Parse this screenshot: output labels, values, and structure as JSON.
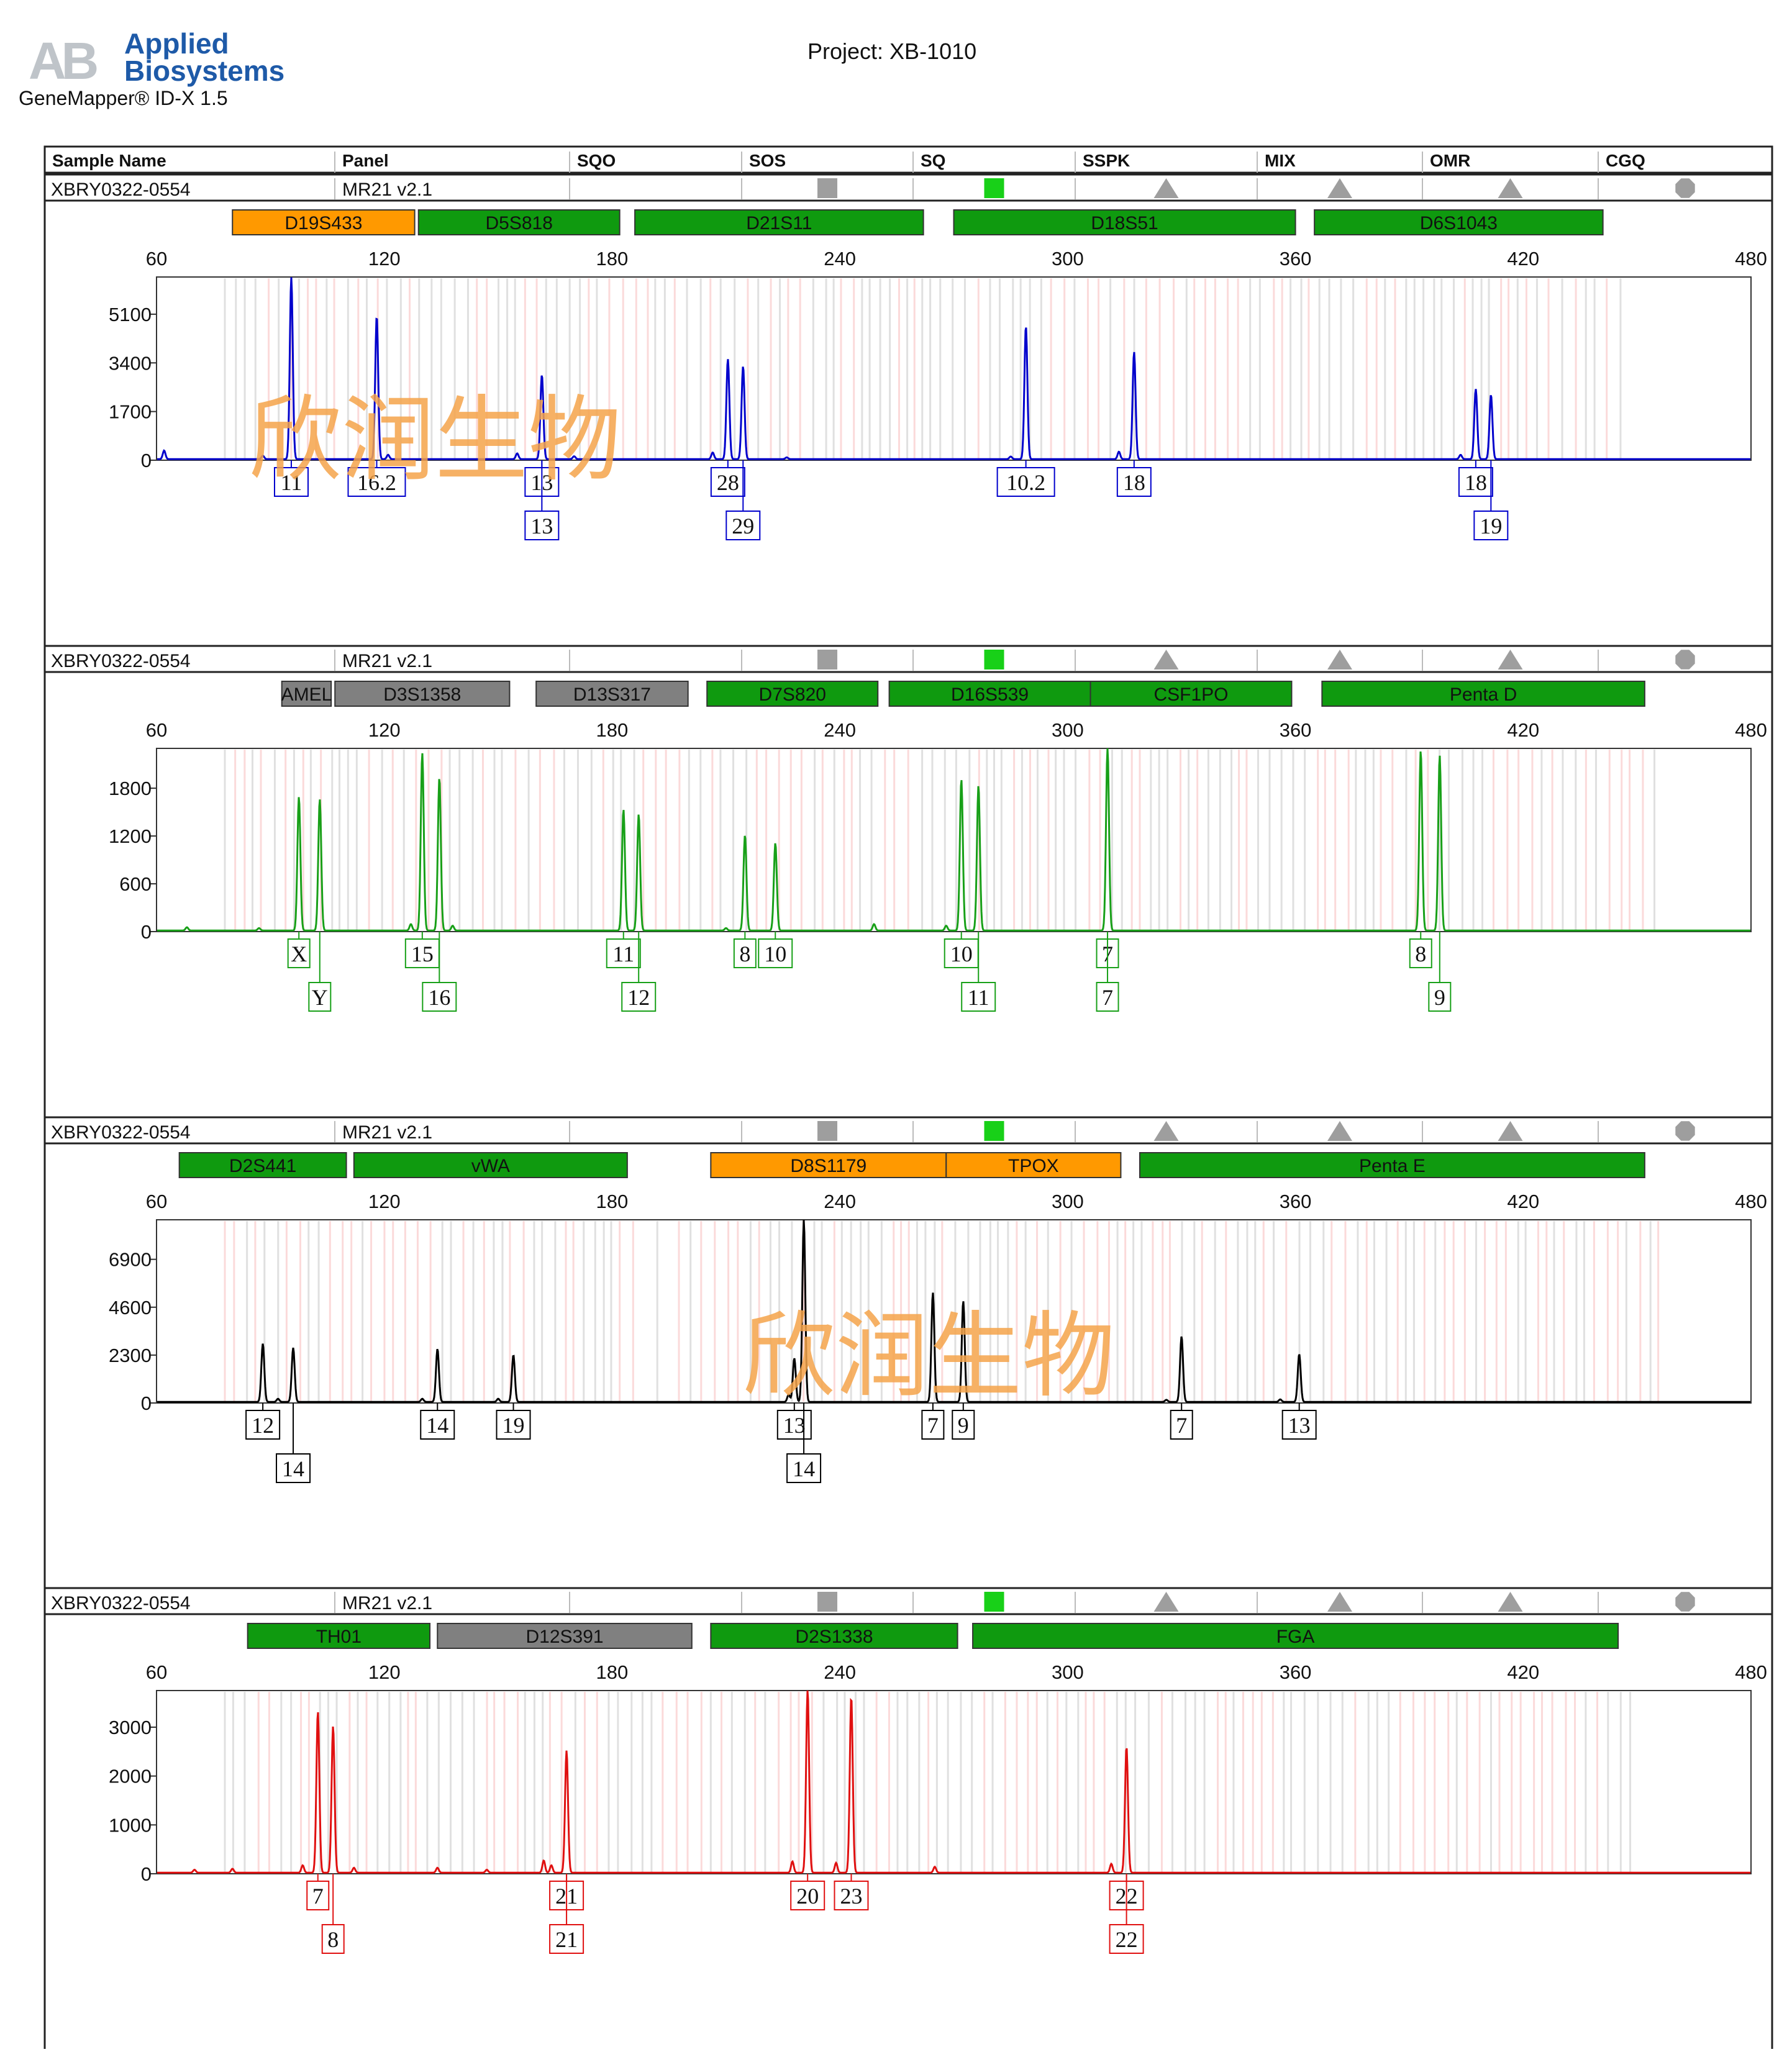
{
  "header": {
    "logo_abbr": "AB",
    "logo_line1": "Applied",
    "logo_line2": "Biosystems",
    "software": "GeneMapper® ID-X  1.5",
    "project": "Project: XB-1010"
  },
  "table_headers": [
    "Sample Name",
    "Panel",
    "SQO",
    "SOS",
    "SQ",
    "SSPK",
    "MIX",
    "OMR",
    "CGQ"
  ],
  "sample": {
    "name": "XBRY0322-0554",
    "panel": "MR21  v2.1",
    "flags": [
      {
        "col": "SOS",
        "shape": "square",
        "color": "#9e9e9e"
      },
      {
        "col": "SQ",
        "shape": "square",
        "color": "#18d018"
      },
      {
        "col": "SSPK",
        "shape": "triangle",
        "color": "#9e9e9e"
      },
      {
        "col": "MIX",
        "shape": "triangle",
        "color": "#9e9e9e"
      },
      {
        "col": "OMR",
        "shape": "triangle",
        "color": "#9e9e9e"
      },
      {
        "col": "CGQ",
        "shape": "octagon",
        "color": "#9e9e9e"
      }
    ]
  },
  "watermark": "欣润生物",
  "colors": {
    "green_bin": "#0f9a0f",
    "orange_bin": "#ff9900",
    "gray_bin": "#808080",
    "panel_border": "#222222"
  },
  "chart_data": [
    {
      "type": "line",
      "dye": "blue",
      "color": "#0000cc",
      "xlim": [
        60,
        480
      ],
      "xticks": [
        60,
        120,
        180,
        240,
        300,
        360,
        420,
        480
      ],
      "yticks": [
        0,
        1700,
        3400,
        5100
      ],
      "ylim": [
        0,
        6400
      ],
      "markers": [
        {
          "name": "D19S433",
          "start": 80,
          "end": 128,
          "color": "orange"
        },
        {
          "name": "D5S818",
          "start": 129,
          "end": 182,
          "color": "green"
        },
        {
          "name": "D21S11",
          "start": 186,
          "end": 262,
          "color": "green"
        },
        {
          "name": "D18S51",
          "start": 270,
          "end": 360,
          "color": "green"
        },
        {
          "name": "D6S1043",
          "start": 365,
          "end": 441,
          "color": "green"
        }
      ],
      "peaks": [
        {
          "x": 95.5,
          "y": 6350,
          "allele": "11",
          "row": 1
        },
        {
          "x": 118,
          "y": 5000,
          "allele": "16.2",
          "row": 1
        },
        {
          "x": 161.5,
          "y": 2950,
          "allele": "13",
          "row": 1
        },
        {
          "x": 161.5,
          "y": 2950,
          "allele": "13",
          "row": 2
        },
        {
          "x": 210.5,
          "y": 3500,
          "allele": "28",
          "row": 1
        },
        {
          "x": 214.5,
          "y": 3250,
          "allele": "29",
          "row": 2
        },
        {
          "x": 289,
          "y": 4650,
          "allele": "10.2",
          "row": 1
        },
        {
          "x": 317.5,
          "y": 3750,
          "allele": "18",
          "row": 1
        },
        {
          "x": 407.5,
          "y": 2450,
          "allele": "18",
          "row": 1
        },
        {
          "x": 411.5,
          "y": 2250,
          "allele": "19",
          "row": 2
        }
      ],
      "minor": [
        {
          "x": 62,
          "y": 300
        },
        {
          "x": 88,
          "y": 120
        },
        {
          "x": 121,
          "y": 150
        },
        {
          "x": 155,
          "y": 200
        },
        {
          "x": 170,
          "y": 100
        },
        {
          "x": 206.5,
          "y": 230
        },
        {
          "x": 226,
          "y": 60
        },
        {
          "x": 285,
          "y": 90
        },
        {
          "x": 313.5,
          "y": 260
        },
        {
          "x": 403.5,
          "y": 150
        }
      ]
    },
    {
      "type": "line",
      "dye": "green",
      "color": "#18a018",
      "xlim": [
        60,
        480
      ],
      "xticks": [
        60,
        120,
        180,
        240,
        300,
        360,
        420,
        480
      ],
      "yticks": [
        0,
        600,
        1200,
        1800
      ],
      "ylim": [
        0,
        2300
      ],
      "markers": [
        {
          "name": "AMEL",
          "start": 93,
          "end": 106,
          "color": "gray"
        },
        {
          "name": "D3S1358",
          "start": 107,
          "end": 153,
          "color": "gray"
        },
        {
          "name": "D13S317",
          "start": 160,
          "end": 200,
          "color": "gray"
        },
        {
          "name": "D7S820",
          "start": 205,
          "end": 250,
          "color": "green"
        },
        {
          "name": "D16S539",
          "start": 253,
          "end": 306,
          "color": "green"
        },
        {
          "name": "CSF1PO",
          "start": 306,
          "end": 359,
          "color": "green"
        },
        {
          "name": "Penta D",
          "start": 367,
          "end": 452,
          "color": "green"
        }
      ],
      "peaks": [
        {
          "x": 97.5,
          "y": 1680,
          "allele": "X",
          "row": 1
        },
        {
          "x": 103,
          "y": 1650,
          "allele": "Y",
          "row": 2
        },
        {
          "x": 130,
          "y": 2230,
          "allele": "15",
          "row": 1
        },
        {
          "x": 134.5,
          "y": 1920,
          "allele": "16",
          "row": 2
        },
        {
          "x": 183,
          "y": 1520,
          "allele": "11",
          "row": 1
        },
        {
          "x": 187,
          "y": 1460,
          "allele": "12",
          "row": 2
        },
        {
          "x": 215,
          "y": 1200,
          "allele": "8",
          "row": 1
        },
        {
          "x": 223,
          "y": 1100,
          "allele": "10",
          "row": 1
        },
        {
          "x": 272,
          "y": 1900,
          "allele": "10",
          "row": 1
        },
        {
          "x": 276.5,
          "y": 1820,
          "allele": "11",
          "row": 2
        },
        {
          "x": 310.5,
          "y": 2300,
          "allele": "7",
          "row": 1
        },
        {
          "x": 310.5,
          "y": 2300,
          "allele": "7",
          "row": 2
        },
        {
          "x": 393,
          "y": 2260,
          "allele": "8",
          "row": 1
        },
        {
          "x": 398,
          "y": 2200,
          "allele": "9",
          "row": 2
        }
      ],
      "minor": [
        {
          "x": 68,
          "y": 40
        },
        {
          "x": 87,
          "y": 30
        },
        {
          "x": 127,
          "y": 80
        },
        {
          "x": 138,
          "y": 60
        },
        {
          "x": 210,
          "y": 30
        },
        {
          "x": 249,
          "y": 80
        },
        {
          "x": 268,
          "y": 60
        }
      ]
    },
    {
      "type": "line",
      "dye": "yellow",
      "color": "#000000",
      "xlim": [
        60,
        480
      ],
      "xticks": [
        60,
        120,
        180,
        240,
        300,
        360,
        420,
        480
      ],
      "yticks": [
        0,
        2300,
        4600,
        6900
      ],
      "ylim": [
        0,
        8800
      ],
      "markers": [
        {
          "name": "D2S441",
          "start": 66,
          "end": 110,
          "color": "green"
        },
        {
          "name": "vWA",
          "start": 112,
          "end": 184,
          "color": "green"
        },
        {
          "name": "D8S1179",
          "start": 206,
          "end": 268,
          "color": "orange"
        },
        {
          "name": "TPOX",
          "start": 268,
          "end": 314,
          "color": "orange"
        },
        {
          "name": "Penta E",
          "start": 319,
          "end": 452,
          "color": "green"
        }
      ],
      "peaks": [
        {
          "x": 88,
          "y": 2800,
          "allele": "12",
          "row": 1
        },
        {
          "x": 96,
          "y": 2600,
          "allele": "14",
          "row": 2
        },
        {
          "x": 134,
          "y": 2550,
          "allele": "14",
          "row": 1
        },
        {
          "x": 154,
          "y": 2250,
          "allele": "19",
          "row": 1
        },
        {
          "x": 228,
          "y": 2100,
          "allele": "13",
          "row": 1
        },
        {
          "x": 230.5,
          "y": 8750,
          "allele": "14",
          "row": 2
        },
        {
          "x": 264.5,
          "y": 5250,
          "allele": "7",
          "row": 1
        },
        {
          "x": 272.5,
          "y": 4850,
          "allele": "9",
          "row": 1
        },
        {
          "x": 330,
          "y": 3150,
          "allele": "7",
          "row": 1
        },
        {
          "x": 361,
          "y": 2300,
          "allele": "13",
          "row": 1
        }
      ],
      "minor": [
        {
          "x": 92,
          "y": 150
        },
        {
          "x": 130,
          "y": 150
        },
        {
          "x": 150,
          "y": 150
        },
        {
          "x": 226.5,
          "y": 350
        },
        {
          "x": 356,
          "y": 120
        },
        {
          "x": 326,
          "y": 100
        }
      ]
    },
    {
      "type": "line",
      "dye": "red",
      "color": "#e01010",
      "xlim": [
        60,
        480
      ],
      "xticks": [
        60,
        120,
        180,
        240,
        300,
        360,
        420,
        480
      ],
      "yticks": [
        0,
        1000,
        2000,
        3000
      ],
      "ylim": [
        0,
        3750
      ],
      "markers": [
        {
          "name": "TH01",
          "start": 84,
          "end": 132,
          "color": "green"
        },
        {
          "name": "D12S391",
          "start": 134,
          "end": 201,
          "color": "gray"
        },
        {
          "name": "D2S1338",
          "start": 206,
          "end": 271,
          "color": "green"
        },
        {
          "name": "FGA",
          "start": 275,
          "end": 445,
          "color": "green"
        }
      ],
      "peaks": [
        {
          "x": 102.5,
          "y": 3300,
          "allele": "7",
          "row": 1
        },
        {
          "x": 106.5,
          "y": 3000,
          "allele": "8",
          "row": 2
        },
        {
          "x": 168,
          "y": 2500,
          "allele": "21",
          "row": 1
        },
        {
          "x": 168,
          "y": 2500,
          "allele": "21",
          "row": 2
        },
        {
          "x": 231.5,
          "y": 3750,
          "allele": "20",
          "row": 1
        },
        {
          "x": 243,
          "y": 3600,
          "allele": "23",
          "row": 1
        },
        {
          "x": 315.5,
          "y": 2580,
          "allele": "22",
          "row": 1
        },
        {
          "x": 315.5,
          "y": 2580,
          "allele": "22",
          "row": 2
        }
      ],
      "minor": [
        {
          "x": 70,
          "y": 60
        },
        {
          "x": 80,
          "y": 80
        },
        {
          "x": 98.5,
          "y": 150
        },
        {
          "x": 112,
          "y": 100
        },
        {
          "x": 134,
          "y": 100
        },
        {
          "x": 147,
          "y": 60
        },
        {
          "x": 162,
          "y": 250
        },
        {
          "x": 164,
          "y": 150
        },
        {
          "x": 227.5,
          "y": 230
        },
        {
          "x": 239,
          "y": 200
        },
        {
          "x": 265,
          "y": 120
        },
        {
          "x": 311.5,
          "y": 180
        }
      ]
    }
  ]
}
